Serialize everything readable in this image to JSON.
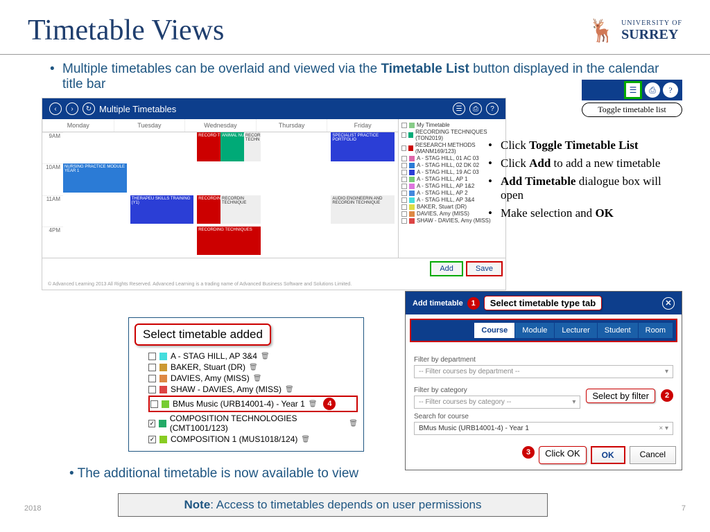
{
  "title": "Timetable Views",
  "logo": {
    "university": "UNIVERSITY OF",
    "name": "SURREY"
  },
  "intro": {
    "line1_a": "Multiple timetables can be overlaid and viewed via the ",
    "line1_b": "Timetable List",
    "line1_c": " button displayed in the calendar title bar"
  },
  "toggle_tooltip": "Toggle timetable list",
  "calendar": {
    "title": "Multiple Timetables",
    "days": [
      "Monday",
      "Tuesday",
      "Wednesday",
      "Thursday",
      "Friday"
    ],
    "times": [
      "9AM",
      "10AM",
      "11AM",
      "4PM"
    ],
    "events": [
      {
        "label": "RECORD TECHN",
        "color": "#c00",
        "col": 2,
        "row": 0,
        "span": 1
      },
      {
        "label": "ANIMAL NUTRIT",
        "color": "#0a7",
        "col": 2,
        "row": 0,
        "span": 1,
        "off": 1
      },
      {
        "label": "RECORD TECHN",
        "color": "#eee",
        "tc": "#333",
        "col": 2,
        "row": 0,
        "span": 1,
        "off": 2
      },
      {
        "label": "NURSING PRACTICE MODULE YEAR 1",
        "color": "#2b7bd6",
        "col": 0,
        "row": 1,
        "span": 1
      },
      {
        "label": "THERAPEU SKILLS TRAINING (Y1)",
        "color": "#2b3ed6",
        "col": 1,
        "row": 2,
        "span": 1
      },
      {
        "label": "RECORDING TECHNIQUE",
        "color": "#c00",
        "col": 2,
        "row": 2,
        "span": 1
      },
      {
        "label": "RECORDIN TECHNIQUE",
        "color": "#eee",
        "tc": "#333",
        "col": 2,
        "row": 2,
        "span": 1,
        "off": 1
      },
      {
        "label": "SPECIALIST PRACTICE PORTFOLIO",
        "color": "#2b3ed6",
        "col": 4,
        "row": 0,
        "span": 1
      },
      {
        "label": "AUDIO ENGINEERIN AND RECORDIN TECHNIQUE",
        "color": "#eee",
        "tc": "#333",
        "col": 4,
        "row": 2,
        "span": 1
      },
      {
        "label": "RECORDING TECHNIQUES",
        "color": "#c00",
        "col": 2,
        "row": 3,
        "span": 1
      }
    ],
    "legend": [
      {
        "label": "My Timetable",
        "color": "#8c8"
      },
      {
        "label": "RECORDING TECHNIQUES (TON2019)",
        "color": "#0a7"
      },
      {
        "label": "RESEARCH METHODS (MANM169/123)",
        "color": "#c00"
      },
      {
        "label": "A - STAG HILL, 01 AC 03",
        "color": "#d6a"
      },
      {
        "label": "A - STAG HILL, 02 DK 02",
        "color": "#2b7bd6"
      },
      {
        "label": "A - STAG HILL, 19 AC 03",
        "color": "#2b3ed6"
      },
      {
        "label": "A - STAG HILL, AP 1",
        "color": "#7c7"
      },
      {
        "label": "A - STAG HILL, AP 1&2",
        "color": "#d7d"
      },
      {
        "label": "A - STAG HILL, AP 2",
        "color": "#48d"
      },
      {
        "label": "A - STAG HILL, AP 3&4",
        "color": "#4dd"
      },
      {
        "label": "BAKER, Stuart (DR)",
        "color": "#dd4"
      },
      {
        "label": "DAVIES, Amy (MISS)",
        "color": "#d84"
      },
      {
        "label": "SHAW - DAVIES, Amy (MISS)",
        "color": "#d44"
      }
    ],
    "add_label": "Add",
    "save_label": "Save",
    "copyright": "© Advanced Learning 2013 All Rights Reserved. Advanced Learning is a trading name of Advanced Business Software and Solutions Limited."
  },
  "steps": [
    {
      "pre": "Click ",
      "bold": "Toggle Timetable List",
      "post": ""
    },
    {
      "pre": "Click ",
      "bold": "Add",
      "post": " to add a new timetable"
    },
    {
      "pre": "",
      "bold": "Add Timetable",
      "post": " dialogue box will open"
    },
    {
      "pre": "Make selection and ",
      "bold": "OK",
      "post": ""
    }
  ],
  "select_added_label": "Select timetable added",
  "added_items": [
    {
      "label": "A - STAG HILL, AP 3&4",
      "color": "#4dd",
      "checked": false,
      "hl": false
    },
    {
      "label": "BAKER, Stuart (DR)",
      "color": "#c93",
      "checked": false,
      "hl": false
    },
    {
      "label": "DAVIES, Amy (MISS)",
      "color": "#d84",
      "checked": false,
      "hl": false
    },
    {
      "label": "SHAW - DAVIES, Amy (MISS)",
      "color": "#d44",
      "checked": false,
      "hl": false
    },
    {
      "label": "BMus Music (URB14001-4) - Year 1",
      "color": "#7c3",
      "checked": false,
      "hl": true
    },
    {
      "label": "COMPOSITION TECHNOLOGIES (CMT1001/123)",
      "color": "#2a6",
      "checked": true,
      "hl": false
    },
    {
      "label": "COMPOSITION 1 (MUS1018/124)",
      "color": "#8c2",
      "checked": true,
      "hl": false
    }
  ],
  "dialog": {
    "title": "Add timetable",
    "annot_tab": "Select timetable type tab",
    "annot_filter": "Select by filter",
    "annot_ok": "Click OK",
    "tabs": [
      "Course",
      "Module",
      "Lecturer",
      "Student",
      "Room"
    ],
    "active_tab": "Course",
    "field1_label": "Filter by department",
    "field1_placeholder": "-- Filter courses by department --",
    "field2_label": "Filter by category",
    "field2_placeholder": "-- Filter courses by category --",
    "field3_label": "Search for course",
    "field3_value": "BMus Music (URB14001-4) - Year 1",
    "ok_label": "OK",
    "cancel_label": "Cancel"
  },
  "bottom_line": "The additional timetable is now available to view",
  "note_bold": "Note",
  "note_rest": ": Access to timetables depends on user permissions",
  "footer_year": "2018",
  "footer_page": "7",
  "colors": {
    "surrey_blue": "#1f3e6e",
    "surrey_gold": "#d4a838",
    "text_blue": "#1f5682",
    "nav_blue": "#0d3e8c",
    "highlight_red": "#c00",
    "highlight_green": "#0a0"
  }
}
